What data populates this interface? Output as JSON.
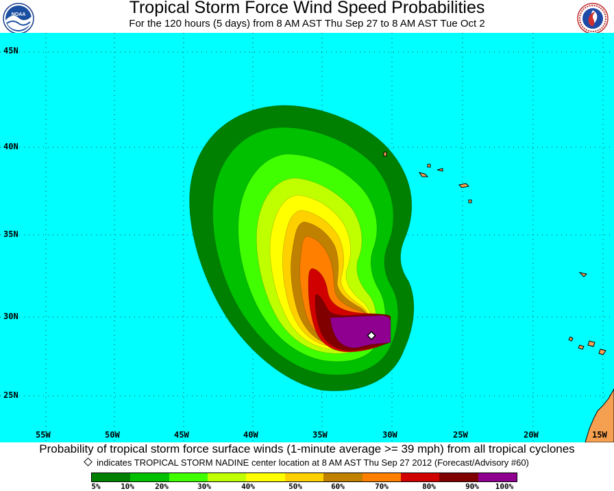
{
  "header": {
    "title": "Tropical Storm Force Wind Speed Probabilities",
    "subtitle": "For the 120 hours (5 days) from 8 AM AST Thu Sep 27 to 8 AM AST Tue Oct 2",
    "left_logo": "noaa-logo-icon",
    "right_logo": "national-weather-service-logo-icon"
  },
  "map": {
    "ocean_color": "#00ffff",
    "land_color": "#f5a050",
    "latitude_labels": [
      "45N",
      "40N",
      "35N",
      "30N",
      "25N"
    ],
    "longitude_labels": [
      "55W",
      "50W",
      "45W",
      "40W",
      "35W",
      "30W",
      "25W",
      "20W",
      "15W"
    ],
    "storm_marker": "storm-center-diamond-icon"
  },
  "footer": {
    "line1": "Probability of tropical storm force surface winds (1-minute average >= 39 mph) from all tropical cyclones",
    "line2": "indicates TROPICAL STORM NADINE center location at 8 AM AST Thu Sep 27 2012 (Forecast/Advisory #60)"
  },
  "legend": {
    "colors": [
      "#008000",
      "#00c000",
      "#40ff00",
      "#c0ff00",
      "#ffff00",
      "#ffd000",
      "#c08000",
      "#ff8000",
      "#d00000",
      "#800000",
      "#900090"
    ],
    "labels": [
      "5%",
      "10%",
      "20%",
      "30%",
      "40%",
      "50%",
      "60%",
      "70%",
      "80%",
      "90%",
      "100%"
    ]
  }
}
